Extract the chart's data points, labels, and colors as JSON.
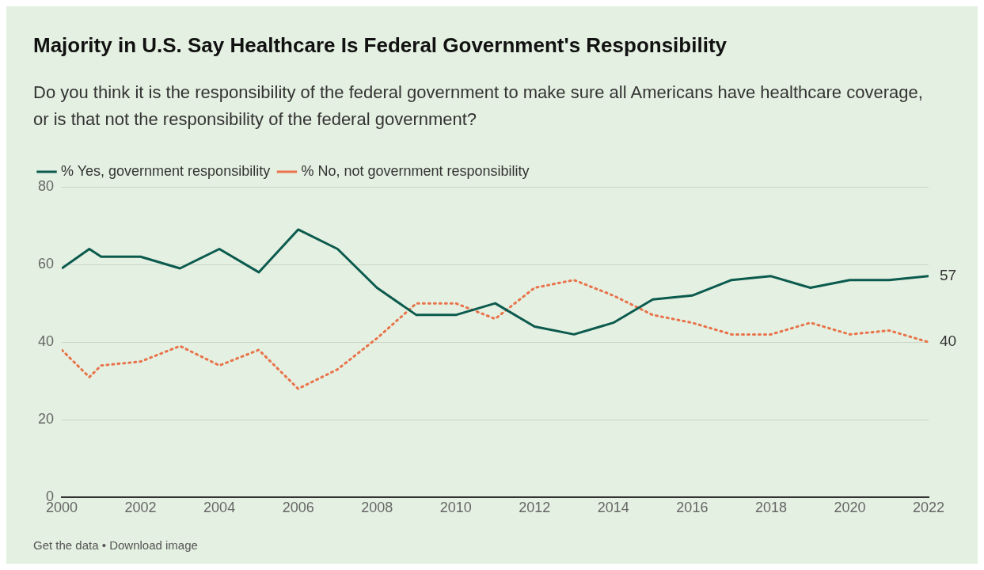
{
  "chart_data": {
    "type": "line",
    "title": "Majority in U.S. Say Healthcare Is Federal Government's Responsibility",
    "subtitle": "Do you think it is the responsibility of the federal government to make sure all Americans have healthcare coverage, or is that not the responsibility of the federal government?",
    "x": [
      2000,
      2000.7,
      2001,
      2002,
      2003,
      2004,
      2005,
      2006,
      2007,
      2008,
      2009,
      2010,
      2011,
      2012,
      2013,
      2014,
      2015,
      2016,
      2017,
      2018,
      2019,
      2020,
      2021,
      2022
    ],
    "series": [
      {
        "name": "% Yes, government responsibility",
        "color": "#0b5a4e",
        "line_style": "solid",
        "values": [
          59,
          64,
          62,
          62,
          59,
          64,
          58,
          69,
          64,
          54,
          47,
          47,
          50,
          44,
          42,
          45,
          51,
          52,
          56,
          57,
          54,
          56,
          56,
          57
        ]
      },
      {
        "name": "% No, not government responsibility",
        "color": "#e8734a",
        "line_style": "dotted",
        "values": [
          38,
          31,
          34,
          35,
          39,
          34,
          38,
          28,
          33,
          41,
          50,
          50,
          46,
          54,
          56,
          52,
          47,
          45,
          42,
          42,
          45,
          42,
          43,
          40
        ]
      }
    ],
    "xlim": [
      2000,
      2022
    ],
    "xticks": [
      2000,
      2002,
      2004,
      2006,
      2008,
      2010,
      2012,
      2014,
      2016,
      2018,
      2020,
      2022
    ],
    "ylim": [
      0,
      80
    ],
    "yticks": [
      0,
      20,
      40,
      60,
      80
    ],
    "grid": "y",
    "legend": "top left",
    "marker": "none",
    "annotations": [
      {
        "text": "57",
        "x": 2022,
        "y": 57
      },
      {
        "text": "40",
        "x": 2022,
        "y": 40
      },
      "Get the data • Download image"
    ]
  }
}
